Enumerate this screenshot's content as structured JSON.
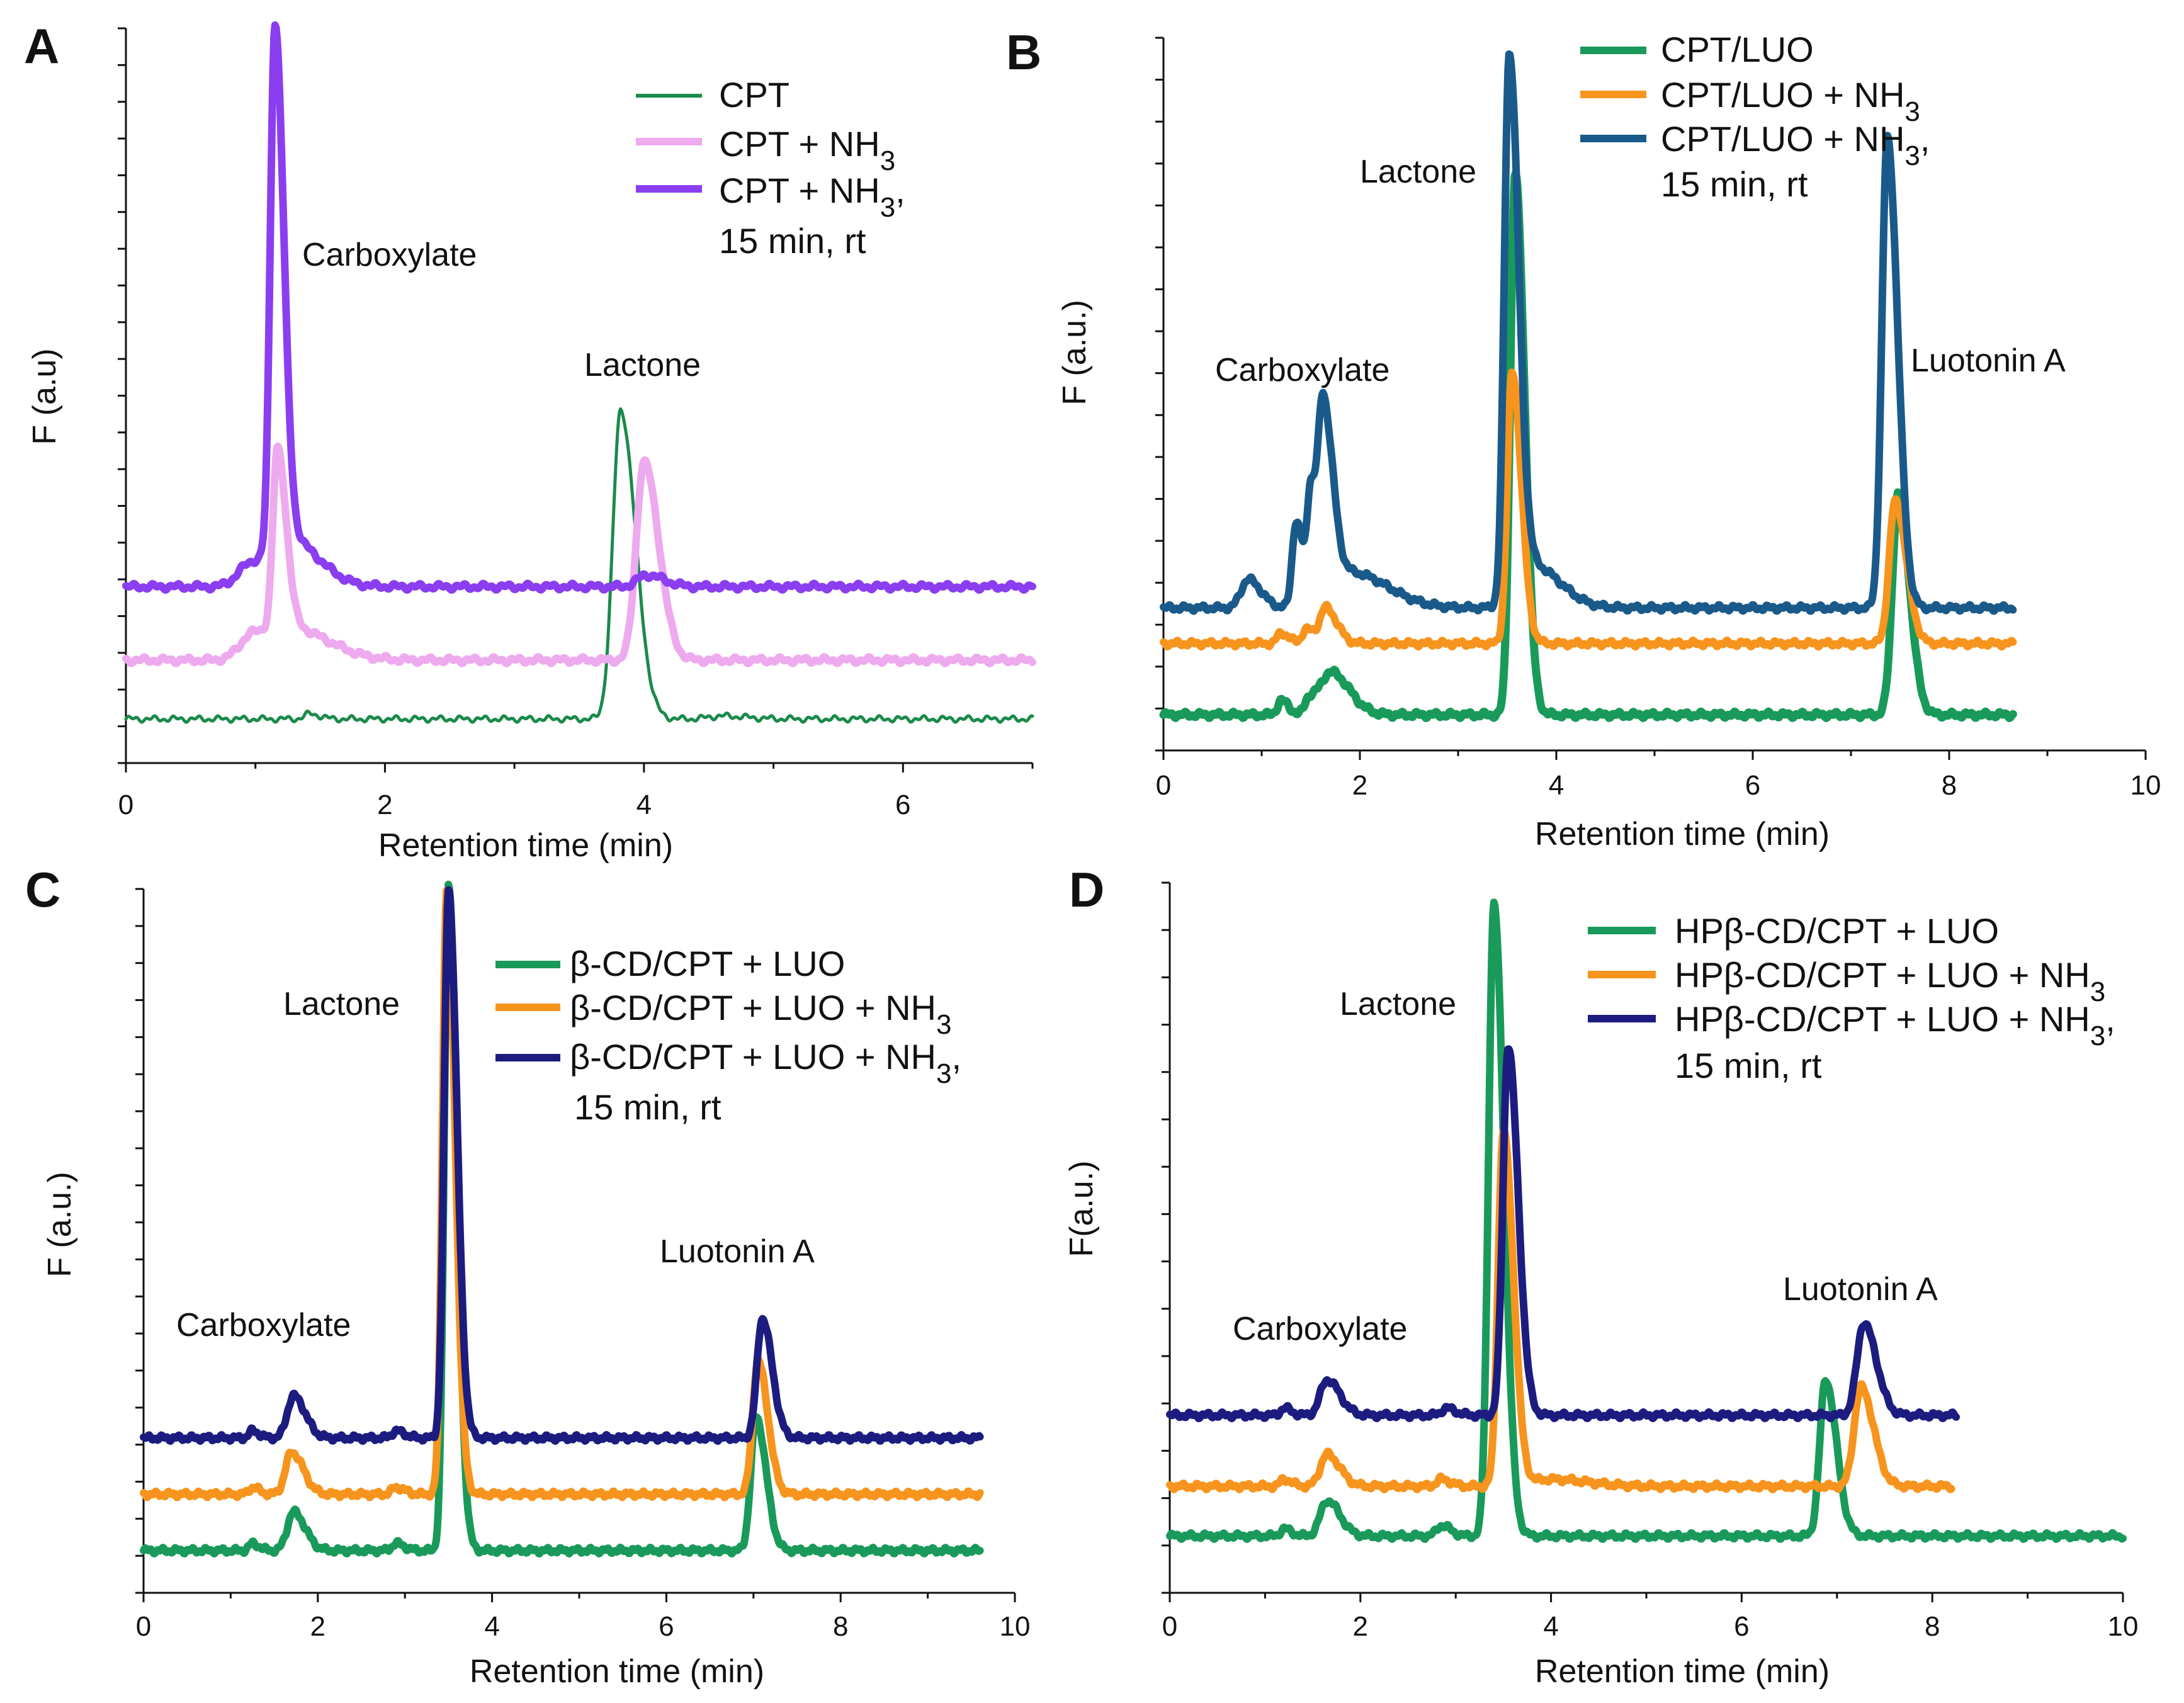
{
  "chart_data": [
    {
      "panel": "A",
      "type": "line",
      "xlabel": "Retention time (min)",
      "ylabel": "F (a.u)",
      "xlim": [
        0,
        7
      ],
      "xticks": [
        "0",
        "2",
        "4",
        "6"
      ],
      "ylim": [
        0,
        100
      ],
      "series": [
        {
          "name": "CPT",
          "color": "#1a8a4a",
          "baseline": 6,
          "peaks": [
            {
              "x": 1.42,
              "h": 0.7,
              "w": 0.04
            },
            {
              "x": 3.82,
              "h": 42,
              "w": 0.06
            },
            {
              "x": 4.6,
              "h": 0.4,
              "w": 0.1
            }
          ]
        },
        {
          "name": "CPT + NH3",
          "color": "#eeaaee",
          "baseline": 14,
          "peaks": [
            {
              "x": 0.98,
              "h": 3.4,
              "w": 0.1
            },
            {
              "x": 1.17,
              "h": 24,
              "w": 0.035
            },
            {
              "x": 1.3,
              "h": 4,
              "w": 0.15
            },
            {
              "x": 4.0,
              "h": 27,
              "w": 0.06
            }
          ]
        },
        {
          "name": "CPT + NH3, 15 min, rt",
          "color": "#8a3ef0",
          "baseline": 24,
          "peaks": [
            {
              "x": 0.97,
              "h": 3.2,
              "w": 0.1
            },
            {
              "x": 1.15,
              "h": 71,
              "w": 0.035
            },
            {
              "x": 1.27,
              "h": 6,
              "w": 0.12
            },
            {
              "x": 4.02,
              "h": 1.6,
              "w": 0.07
            }
          ]
        }
      ],
      "legend": [
        "CPT",
        "CPT + NH",
        "3",
        "CPT + NH",
        "3",
        ",",
        "15 min, rt"
      ],
      "annotations": [
        "Carboxylate",
        "Lactone"
      ]
    },
    {
      "panel": "B",
      "type": "line",
      "xlabel": "Retention time (min)",
      "ylabel": "F (a.u.)",
      "xlim": [
        0,
        10
      ],
      "xticks": [
        "0",
        "2",
        "4",
        "6",
        "8",
        "10"
      ],
      "ylim": [
        0,
        100
      ],
      "series": [
        {
          "name": "CPT/LUO",
          "color": "#1a9a5a",
          "baseline": 5,
          "peaks": [
            {
              "x": 1.2,
              "h": 2,
              "w": 0.04
            },
            {
              "x": 1.48,
              "h": 2.2,
              "w": 0.04
            },
            {
              "x": 1.7,
              "h": 6,
              "w": 0.1
            },
            {
              "x": 3.58,
              "h": 76,
              "w": 0.05
            },
            {
              "x": 7.48,
              "h": 31,
              "w": 0.06
            }
          ]
        },
        {
          "name": "CPT/LUO + NH3",
          "color": "#f7941d",
          "baseline": 15,
          "peaks": [
            {
              "x": 1.2,
              "h": 1.5,
              "w": 0.04
            },
            {
              "x": 1.45,
              "h": 2,
              "w": 0.04
            },
            {
              "x": 1.65,
              "h": 5,
              "w": 0.06
            },
            {
              "x": 3.55,
              "h": 38,
              "w": 0.05
            },
            {
              "x": 7.45,
              "h": 20,
              "w": 0.06
            }
          ]
        },
        {
          "name": "CPT/LUO + NH3, 15 min, rt",
          "color": "#1a5a8a",
          "baseline": 20,
          "peaks": [
            {
              "x": 0.86,
              "h": 4,
              "w": 0.07
            },
            {
              "x": 1.35,
              "h": 12,
              "w": 0.04
            },
            {
              "x": 1.5,
              "h": 15,
              "w": 0.035
            },
            {
              "x": 1.63,
              "h": 26,
              "w": 0.05
            },
            {
              "x": 1.9,
              "h": 5,
              "w": 0.2
            },
            {
              "x": 3.52,
              "h": 76,
              "w": 0.05
            },
            {
              "x": 3.75,
              "h": 6,
              "w": 0.15
            },
            {
              "x": 7.37,
              "h": 66,
              "w": 0.055
            }
          ]
        }
      ],
      "legend": [
        "CPT/LUO",
        "CPT/LUO + NH",
        "3",
        "CPT/LUO + NH",
        "3",
        ",",
        "15 min, rt"
      ],
      "annotations": [
        "Carboxylate",
        "Lactone",
        "Luotonin A"
      ]
    },
    {
      "panel": "C",
      "type": "line",
      "xlabel": "Retention time (min)",
      "ylabel": "F (a.u.)",
      "xlim": [
        0,
        10
      ],
      "xticks": [
        "0",
        "2",
        "4",
        "6",
        "8",
        "10"
      ],
      "ylim": [
        0,
        100
      ],
      "series": [
        {
          "name": "β-CD/CPT + LUO",
          "color": "#1a9a5a",
          "baseline": 6,
          "peaks": [
            {
              "x": 1.25,
              "h": 1,
              "w": 0.04
            },
            {
              "x": 1.72,
              "h": 5.5,
              "w": 0.07
            },
            {
              "x": 2.9,
              "h": 1,
              "w": 0.05
            },
            {
              "x": 3.5,
              "h": 95,
              "w": 0.05
            },
            {
              "x": 7.03,
              "h": 19,
              "w": 0.06
            }
          ]
        },
        {
          "name": "β-CD/CPT + LUO + NH3",
          "color": "#f7941d",
          "baseline": 14,
          "peaks": [
            {
              "x": 1.25,
              "h": 1,
              "w": 0.04
            },
            {
              "x": 1.7,
              "h": 6,
              "w": 0.07
            },
            {
              "x": 2.9,
              "h": 1,
              "w": 0.05
            },
            {
              "x": 3.48,
              "h": 86,
              "w": 0.05
            },
            {
              "x": 7.05,
              "h": 19,
              "w": 0.06
            }
          ]
        },
        {
          "name": "β-CD/CPT + LUO + NH3, 15 min, rt",
          "color": "#1c1c80",
          "baseline": 22,
          "peaks": [
            {
              "x": 1.25,
              "h": 1,
              "w": 0.04
            },
            {
              "x": 1.72,
              "h": 6,
              "w": 0.07
            },
            {
              "x": 2.9,
              "h": 1,
              "w": 0.05
            },
            {
              "x": 3.5,
              "h": 78,
              "w": 0.05
            },
            {
              "x": 7.1,
              "h": 17,
              "w": 0.06
            }
          ]
        }
      ],
      "legend": [
        "β-CD/CPT + LUO",
        "β-CD/CPT + LUO + NH",
        "3",
        "β-CD/CPT + LUO + NH",
        "3",
        ",",
        "15 min, rt"
      ],
      "annotations": [
        "Carboxylate",
        "Lactone",
        "Luotonin A"
      ]
    },
    {
      "panel": "D",
      "type": "line",
      "xlabel": "Retention time (min)",
      "ylabel": "F(a.u.)",
      "xlim": [
        0,
        10
      ],
      "xticks": [
        "0",
        "2",
        "4",
        "6",
        "8",
        "10"
      ],
      "ylim": [
        0,
        100
      ],
      "series": [
        {
          "name": "HPβ-CD/CPT + LUO",
          "color": "#1a9a5a",
          "baseline": 8,
          "peaks": [
            {
              "x": 1.2,
              "h": 1,
              "w": 0.04
            },
            {
              "x": 1.65,
              "h": 5,
              "w": 0.07
            },
            {
              "x": 2.85,
              "h": 1.5,
              "w": 0.05
            },
            {
              "x": 3.4,
              "h": 89,
              "w": 0.055
            },
            {
              "x": 6.88,
              "h": 22,
              "w": 0.06
            }
          ]
        },
        {
          "name": "HPβ-CD/CPT + LUO + NH3",
          "color": "#f7941d",
          "baseline": 15,
          "peaks": [
            {
              "x": 1.2,
              "h": 1,
              "w": 0.04
            },
            {
              "x": 1.65,
              "h": 4.5,
              "w": 0.07
            },
            {
              "x": 2.85,
              "h": 1,
              "w": 0.05
            },
            {
              "x": 3.5,
              "h": 50,
              "w": 0.055
            },
            {
              "x": 4.0,
              "h": 1,
              "w": 0.2
            },
            {
              "x": 7.25,
              "h": 14,
              "w": 0.07
            }
          ]
        },
        {
          "name": "HPβ-CD/CPT + LUO + NH3, 15 min, rt",
          "color": "#1c1c80",
          "baseline": 25,
          "peaks": [
            {
              "x": 1.2,
              "h": 1,
              "w": 0.04
            },
            {
              "x": 1.65,
              "h": 5,
              "w": 0.07
            },
            {
              "x": 2.9,
              "h": 1,
              "w": 0.05
            },
            {
              "x": 3.55,
              "h": 52,
              "w": 0.055
            },
            {
              "x": 7.28,
              "h": 13,
              "w": 0.07
            }
          ]
        }
      ],
      "legend": [
        "HPβ-CD/CPT + LUO",
        "HPβ-CD/CPT + LUO + NH",
        "3",
        "HPβ-CD/CPT + LUO + NH",
        "3",
        ",",
        "15 min, rt"
      ],
      "annotations": [
        "Carboxylate",
        "Lactone",
        "Luotonin A"
      ]
    }
  ]
}
